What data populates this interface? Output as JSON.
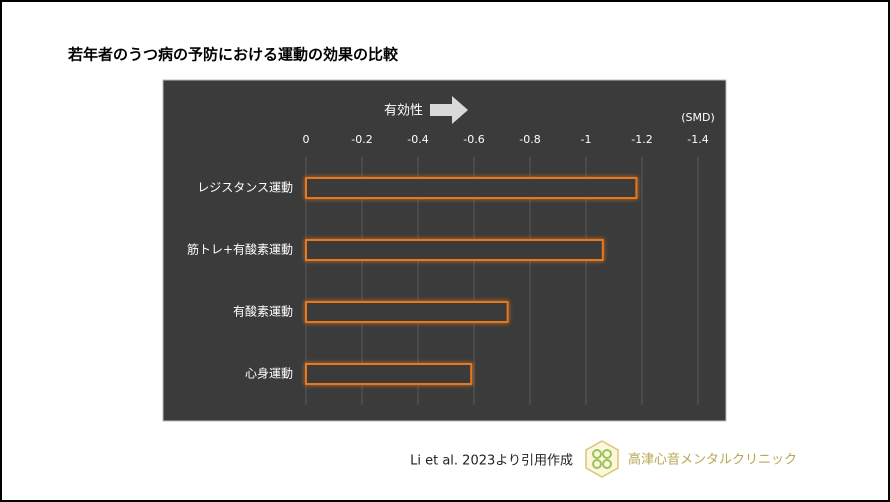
{
  "chart_data": {
    "type": "bar",
    "orientation": "horizontal",
    "title": "若年者のうつ病の予防における運動の効果の比較",
    "annotation": "有効性",
    "unit": "(SMD)",
    "categories": [
      "レジスタンス運動",
      "筋トレ+有酸素運動",
      "有酸素運動",
      "心身運動"
    ],
    "values": [
      -1.18,
      -1.06,
      -0.72,
      -0.59
    ],
    "color": "#e8781e",
    "xlim": [
      0,
      -1.4
    ],
    "xticks": [
      0,
      -0.2,
      -0.4,
      -0.6,
      -0.8,
      -1,
      -1.2,
      -1.4
    ],
    "grid": true
  },
  "source": "Li et al. 2023より引用作成",
  "clinic": "高津心音メンタルクリニック"
}
